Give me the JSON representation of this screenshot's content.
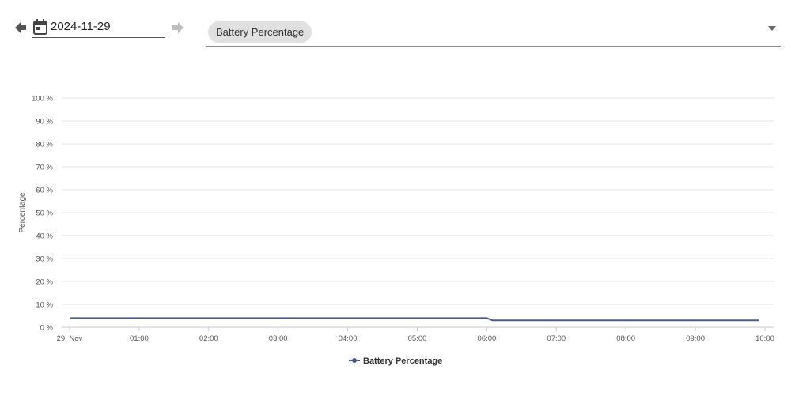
{
  "date_picker": {
    "value": "2024-11-29",
    "prev_icon": "arrow-left-icon",
    "calendar_icon": "calendar-icon",
    "next_icon": "arrow-right-icon"
  },
  "metric_select": {
    "selected": "Battery Percentage",
    "caret_icon": "caret-down-icon"
  },
  "colors": {
    "series": "#4a5a8f",
    "grid": "#e6e6e6",
    "chip_bg": "#e0e0e0"
  },
  "chart_data": {
    "type": "line",
    "title": "",
    "xlabel": "",
    "ylabel": "Percentage",
    "ylim": [
      0,
      100
    ],
    "y_ticks": [
      "0 %",
      "10 %",
      "20 %",
      "30 %",
      "40 %",
      "50 %",
      "60 %",
      "70 %",
      "80 %",
      "90 %",
      "100 %"
    ],
    "x_range": [
      "2024-11-29 00:00",
      "2024-11-29 10:00"
    ],
    "x_ticks": [
      "29. Nov",
      "01:00",
      "02:00",
      "03:00",
      "04:00",
      "05:00",
      "06:00",
      "07:00",
      "08:00",
      "09:00",
      "10:00"
    ],
    "grid": true,
    "legend_position": "bottom-center",
    "series": [
      {
        "name": "Battery Percentage",
        "color": "#4a5a8f",
        "points": [
          {
            "x": "2024-11-29 00:00",
            "y": 4
          },
          {
            "x": "2024-11-29 06:00",
            "y": 4
          },
          {
            "x": "2024-11-29 06:05",
            "y": 3
          },
          {
            "x": "2024-11-29 09:55",
            "y": 3
          }
        ]
      }
    ]
  }
}
